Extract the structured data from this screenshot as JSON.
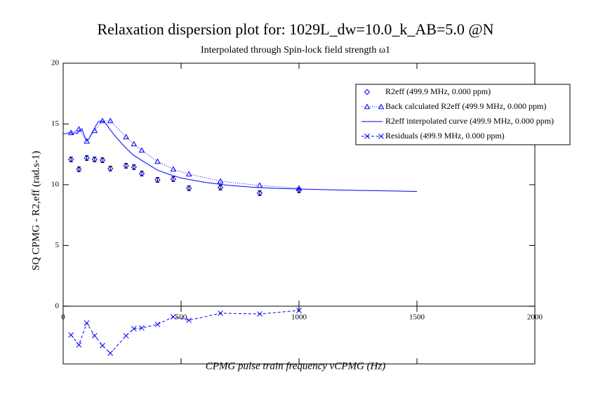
{
  "chart_data": {
    "type": "line",
    "title": "Relaxation dispersion plot for: 1029L_dw=10.0_k_AB=5.0 @N",
    "subtitle": "Interpolated through Spin-lock field strength ω1",
    "x_label": "CPMG pulse train frequency νCPMG (Hz)",
    "y_label": "SQ CPMG - R2,eff (rad.s-1)",
    "xlim": [
      0,
      2000
    ],
    "ylim": [
      -4.75,
      20
    ],
    "xticks": [
      0,
      500,
      1000,
      1500,
      2000
    ],
    "yticks": [
      0,
      5,
      10,
      15,
      20
    ],
    "legend": "upper right",
    "series": [
      {
        "name": "R2eff (499.9 MHz, 0.000 ppm)",
        "color": "#0000ff",
        "marker": "diamond",
        "line": "none",
        "x": [
          33.3,
          66.7,
          100,
          133.3,
          166.7,
          200,
          266.7,
          300,
          333.3,
          400,
          466.7,
          533.3,
          666.7,
          833.3,
          1000
        ],
        "values": [
          12.08,
          11.27,
          12.2,
          12.08,
          12.02,
          11.33,
          11.56,
          11.45,
          10.92,
          10.4,
          10.46,
          9.71,
          9.77,
          9.31,
          9.54
        ],
        "errors": [
          0.2,
          0.2,
          0.2,
          0.2,
          0.2,
          0.2,
          0.2,
          0.2,
          0.2,
          0.2,
          0.2,
          0.2,
          0.2,
          0.2,
          0.2
        ]
      },
      {
        "name": "Back calculated R2eff (499.9 MHz, 0.000 ppm)",
        "color": "#0000ff",
        "marker": "triangle",
        "line": "dotted",
        "x": [
          33.3,
          66.7,
          100,
          133.3,
          166.7,
          200,
          266.7,
          300,
          333.3,
          400,
          466.7,
          533.3,
          666.7,
          833.3,
          1000
        ],
        "values": [
          14.28,
          14.57,
          13.58,
          14.45,
          15.26,
          15.26,
          13.93,
          13.35,
          12.83,
          11.91,
          11.27,
          10.87,
          10.29,
          9.94,
          9.71
        ]
      },
      {
        "name": "R2eff interpolated curve (499.9 MHz, 0.000 ppm)",
        "color": "#0000ff",
        "marker": "none",
        "line": "solid",
        "x": [
          0,
          10,
          20,
          30,
          40,
          50,
          60,
          70,
          80,
          90,
          100,
          110,
          120,
          130,
          140,
          150,
          160,
          170,
          180,
          190,
          200,
          225,
          250,
          275,
          300,
          350,
          400,
          450,
          500,
          600,
          700,
          800,
          900,
          1000,
          1200,
          1400,
          1500
        ],
        "values": [
          14.2,
          14.2,
          14.25,
          14.3,
          14.15,
          14.3,
          14.2,
          14.5,
          14.6,
          14.0,
          13.6,
          13.8,
          14.2,
          14.55,
          14.9,
          15.2,
          15.25,
          15.2,
          15.05,
          14.8,
          14.5,
          13.9,
          13.35,
          12.85,
          12.4,
          11.8,
          11.2,
          10.85,
          10.55,
          10.2,
          9.95,
          9.8,
          9.7,
          9.65,
          9.55,
          9.48,
          9.45
        ]
      },
      {
        "name": "Residuals (499.9 MHz, 0.000 ppm)",
        "color": "#0000ff",
        "marker": "x",
        "line": "dashed",
        "x": [
          33.3,
          66.7,
          100,
          133.3,
          166.7,
          200,
          266.7,
          300,
          333.3,
          400,
          466.7,
          533.3,
          666.7,
          833.3,
          1000
        ],
        "values": [
          -2.37,
          -3.18,
          -1.39,
          -2.43,
          -3.24,
          -3.87,
          -2.43,
          -1.85,
          -1.79,
          -1.5,
          -0.87,
          -1.16,
          -0.58,
          -0.64,
          -0.35
        ]
      }
    ]
  }
}
